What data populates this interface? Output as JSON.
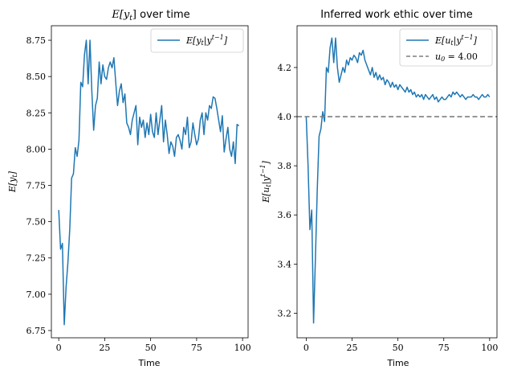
{
  "chart_data": [
    {
      "type": "line",
      "title": "E[y_t] over time",
      "xlabel": "Time",
      "ylabel": "E[y_t]",
      "xlim": [
        -4,
        103
      ],
      "ylim": [
        6.7,
        8.85
      ],
      "xticks": [
        0,
        25,
        50,
        75,
        100
      ],
      "xtick_labels": [
        "0",
        "25",
        "50",
        "75",
        "100"
      ],
      "yticks": [
        6.75,
        7.0,
        7.25,
        7.5,
        7.75,
        8.0,
        8.25,
        8.5,
        8.75
      ],
      "ytick_labels": [
        "6.75",
        "7.00",
        "7.25",
        "7.50",
        "7.75",
        "8.00",
        "8.25",
        "8.50",
        "8.75"
      ],
      "grid": false,
      "legend_position": "top-right",
      "series": [
        {
          "name": "E[y_t|y^{t-1}]",
          "color": "#1f77b4",
          "x": [
            0,
            1,
            2,
            3,
            4,
            5,
            6,
            7,
            8,
            9,
            10,
            11,
            12,
            13,
            14,
            15,
            16,
            17,
            18,
            19,
            20,
            21,
            22,
            23,
            24,
            25,
            26,
            27,
            28,
            29,
            30,
            31,
            32,
            33,
            34,
            35,
            36,
            37,
            38,
            39,
            40,
            41,
            42,
            43,
            44,
            45,
            46,
            47,
            48,
            49,
            50,
            51,
            52,
            53,
            54,
            55,
            56,
            57,
            58,
            59,
            60,
            61,
            62,
            63,
            64,
            65,
            66,
            67,
            68,
            69,
            70,
            71,
            72,
            73,
            74,
            75,
            76,
            77,
            78,
            79,
            80,
            81,
            82,
            83,
            84,
            85,
            86,
            87,
            88,
            89,
            90,
            91,
            92,
            93,
            94,
            95,
            96,
            97,
            98
          ],
          "values": [
            7.58,
            7.31,
            7.35,
            6.79,
            7.05,
            7.22,
            7.45,
            7.8,
            7.83,
            8.01,
            7.95,
            8.06,
            8.46,
            8.43,
            8.65,
            8.75,
            8.45,
            8.75,
            8.4,
            8.13,
            8.3,
            8.35,
            8.6,
            8.45,
            8.58,
            8.5,
            8.48,
            8.56,
            8.6,
            8.56,
            8.63,
            8.46,
            8.3,
            8.4,
            8.45,
            8.32,
            8.38,
            8.18,
            8.15,
            8.1,
            8.2,
            8.25,
            8.3,
            8.03,
            8.22,
            8.15,
            8.2,
            8.08,
            8.18,
            8.1,
            8.24,
            8.12,
            8.08,
            8.25,
            8.1,
            8.2,
            8.3,
            8.05,
            8.2,
            8.1,
            7.97,
            8.05,
            8.02,
            7.95,
            8.08,
            8.1,
            8.06,
            8.0,
            8.15,
            8.1,
            8.22,
            8.01,
            8.05,
            8.18,
            8.1,
            8.03,
            8.07,
            8.2,
            8.25,
            8.1,
            8.25,
            8.2,
            8.3,
            8.28,
            8.36,
            8.35,
            8.28,
            8.2,
            8.12,
            8.23,
            7.98,
            8.07,
            8.15,
            8.0,
            7.95,
            8.05,
            7.9,
            8.17,
            8.16
          ],
          "values_note": ""
        }
      ]
    },
    {
      "type": "line",
      "title": "Inferred work ethic over time",
      "xlabel": "Time",
      "ylabel": "E[u_t|y^{t-1}]",
      "xlim": [
        -5,
        104
      ],
      "ylim": [
        3.1,
        4.37
      ],
      "xticks": [
        0,
        25,
        50,
        75,
        100
      ],
      "xtick_labels": [
        "0",
        "25",
        "50",
        "75",
        "100"
      ],
      "yticks": [
        3.2,
        3.4,
        3.6,
        3.8,
        4.0,
        4.2
      ],
      "ytick_labels": [
        "3.2",
        "3.4",
        "3.6",
        "3.8",
        "4.0",
        "4.2"
      ],
      "grid": false,
      "legend_position": "top-right",
      "series": [
        {
          "name": "E[u_t|y^{t-1}]",
          "color": "#1f77b4",
          "x": [
            0,
            1,
            2,
            3,
            4,
            5,
            6,
            7,
            8,
            9,
            10,
            11,
            12,
            13,
            14,
            15,
            16,
            17,
            18,
            19,
            20,
            21,
            22,
            23,
            24,
            25,
            26,
            27,
            28,
            29,
            30,
            31,
            32,
            33,
            34,
            35,
            36,
            37,
            38,
            39,
            40,
            41,
            42,
            43,
            44,
            45,
            46,
            47,
            48,
            49,
            50,
            51,
            52,
            53,
            54,
            55,
            56,
            57,
            58,
            59,
            60,
            61,
            62,
            63,
            64,
            65,
            66,
            67,
            68,
            69,
            70,
            71,
            72,
            73,
            74,
            75,
            76,
            77,
            78,
            79,
            80,
            81,
            82,
            83,
            84,
            85,
            86,
            87,
            88,
            89,
            90,
            91,
            92,
            93,
            94,
            95,
            96,
            97,
            98,
            99,
            100
          ],
          "values": [
            4.0,
            3.8,
            3.54,
            3.62,
            3.16,
            3.42,
            3.7,
            3.92,
            3.95,
            4.02,
            3.98,
            4.2,
            4.18,
            4.28,
            4.32,
            4.22,
            4.32,
            4.2,
            4.14,
            4.17,
            4.2,
            4.18,
            4.23,
            4.21,
            4.24,
            4.23,
            4.25,
            4.24,
            4.22,
            4.26,
            4.25,
            4.27,
            4.23,
            4.21,
            4.19,
            4.17,
            4.2,
            4.16,
            4.18,
            4.15,
            4.17,
            4.15,
            4.16,
            4.13,
            4.15,
            4.14,
            4.12,
            4.14,
            4.12,
            4.13,
            4.11,
            4.13,
            4.12,
            4.11,
            4.1,
            4.12,
            4.1,
            4.11,
            4.09,
            4.1,
            4.08,
            4.09,
            4.08,
            4.09,
            4.07,
            4.09,
            4.08,
            4.07,
            4.08,
            4.09,
            4.07,
            4.08,
            4.06,
            4.07,
            4.08,
            4.07,
            4.07,
            4.08,
            4.09,
            4.08,
            4.1,
            4.09,
            4.1,
            4.09,
            4.08,
            4.09,
            4.08,
            4.07,
            4.08,
            4.08,
            4.08,
            4.09,
            4.08,
            4.08,
            4.07,
            4.08,
            4.09,
            4.08,
            4.08,
            4.09,
            4.08
          ]
        },
        {
          "name": "u_0 = 4.00",
          "color": "#7f7f7f",
          "style": "dashed",
          "type": "hline",
          "y": 4.0
        }
      ]
    }
  ]
}
